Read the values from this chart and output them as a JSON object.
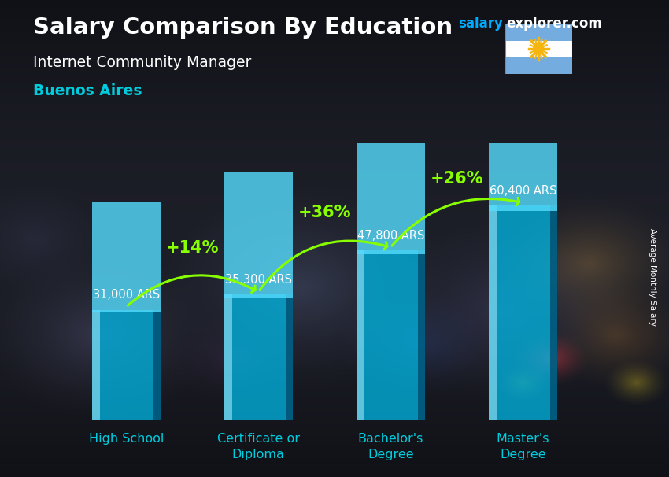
{
  "title_salary": "Salary Comparison By Education",
  "subtitle_job": "Internet Community Manager",
  "subtitle_city": "Buenos Aires",
  "watermark_salary": "salary",
  "watermark_rest": "explorer.com",
  "ylabel": "Average Monthly Salary",
  "categories": [
    "High School",
    "Certificate or\nDiploma",
    "Bachelor's\nDegree",
    "Master's\nDegree"
  ],
  "values": [
    31000,
    35300,
    47800,
    60400
  ],
  "value_labels": [
    "31,000 ARS",
    "35,300 ARS",
    "47,800 ARS",
    "60,400 ARS"
  ],
  "pct_labels": [
    "+14%",
    "+36%",
    "+26%"
  ],
  "bar_color_main": "#00b8e6",
  "bar_color_light": "#00d8ff",
  "bar_color_dark": "#0077aa",
  "bg_color": "#2a2a3a",
  "title_color": "#ffffff",
  "subtitle_job_color": "#ffffff",
  "subtitle_city_color": "#00ccdd",
  "value_label_color": "#ffffff",
  "pct_label_color": "#88ff00",
  "arrow_color": "#88ff00",
  "watermark_salary_color": "#00aaff",
  "watermark_rest_color": "#ffffff",
  "x_label_color": "#00ccdd",
  "bar_width": 0.52,
  "ylim": [
    0,
    78000
  ],
  "figsize": [
    8.5,
    6.06
  ],
  "dpi": 100
}
